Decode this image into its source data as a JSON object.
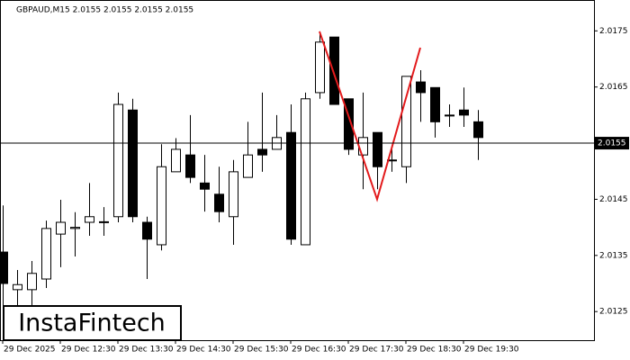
{
  "chart_data": {
    "type": "candlestick",
    "title": "GBPAUD,M15  2.0155 2.0155 2.0155 2.0155",
    "watermark": "InstaFintech",
    "categories": [
      "29 Dec 2025",
      null,
      null,
      null,
      "29 Dec 12:30",
      null,
      null,
      null,
      "29 Dec 13:30",
      null,
      null,
      null,
      "29 Dec 14:30",
      null,
      null,
      null,
      "29 Dec 15:30",
      null,
      null,
      null,
      "29 Dec 16:30",
      null,
      null,
      null,
      "29 Dec 17:30",
      null,
      null,
      null,
      "29 Dec 18:30",
      null,
      null,
      null,
      "29 Dec 19:30",
      null
    ],
    "open": [
      2.01356,
      2.01289,
      2.01289,
      2.01308,
      2.01388,
      2.01398,
      2.01409,
      2.01409,
      2.01419,
      2.01609,
      2.01409,
      2.01369,
      2.01499,
      2.01529,
      2.01479,
      2.01459,
      2.01419,
      2.01489,
      2.01539,
      2.01539,
      2.01569,
      2.01369,
      2.0164,
      2.01739,
      2.01629,
      2.01529,
      2.01569,
      2.01519,
      2.01508,
      2.01659,
      2.01649,
      2.016,
      2.01609,
      2.01588
    ],
    "high": [
      2.01439,
      2.01324,
      2.0134,
      2.01412,
      2.01449,
      2.01427,
      2.01479,
      2.01436,
      2.0164,
      2.01629,
      2.01419,
      2.01548,
      2.01559,
      2.016,
      2.01529,
      2.01508,
      2.0152,
      2.01588,
      2.0164,
      2.016,
      2.01619,
      2.0164,
      2.01749,
      2.01739,
      2.01629,
      2.0164,
      2.01569,
      2.01539,
      2.01669,
      2.0168,
      2.01649,
      2.01619,
      2.01649,
      2.01609
    ],
    "low": [
      2.0126,
      2.0126,
      2.0126,
      2.01292,
      2.01329,
      2.01348,
      2.01385,
      2.01385,
      2.01409,
      2.01409,
      2.01308,
      2.01359,
      2.01499,
      2.01479,
      2.01428,
      2.01409,
      2.01369,
      2.01489,
      2.01499,
      2.01539,
      2.01369,
      2.01369,
      2.01629,
      2.01619,
      2.01529,
      2.01468,
      2.01468,
      2.01499,
      2.01479,
      2.01588,
      2.0156,
      2.01579,
      2.01579,
      2.0152
    ],
    "close": [
      2.013,
      2.01298,
      2.01318,
      2.01398,
      2.01409,
      2.014,
      2.01419,
      2.0141,
      2.01619,
      2.01419,
      2.01379,
      2.01508,
      2.01539,
      2.01489,
      2.01468,
      2.01428,
      2.01499,
      2.01529,
      2.01529,
      2.0156,
      2.01379,
      2.01629,
      2.0173,
      2.01619,
      2.01539,
      2.0156,
      2.01508,
      2.0152,
      2.01669,
      2.0164,
      2.01588,
      2.01599,
      2.016,
      2.0156
    ],
    "up_color": "#ffffff",
    "down_color": "#000000",
    "ylim": [
      2.01199,
      2.01805
    ],
    "yticks": [
      2.0125,
      2.0135,
      2.0145,
      2.0165,
      2.0175
    ],
    "current_price": 2.0155,
    "pattern": {
      "color": "#e31a1c",
      "x": [
        22,
        26,
        29
      ],
      "y": [
        2.01749,
        2.0145,
        2.0172
      ]
    }
  }
}
